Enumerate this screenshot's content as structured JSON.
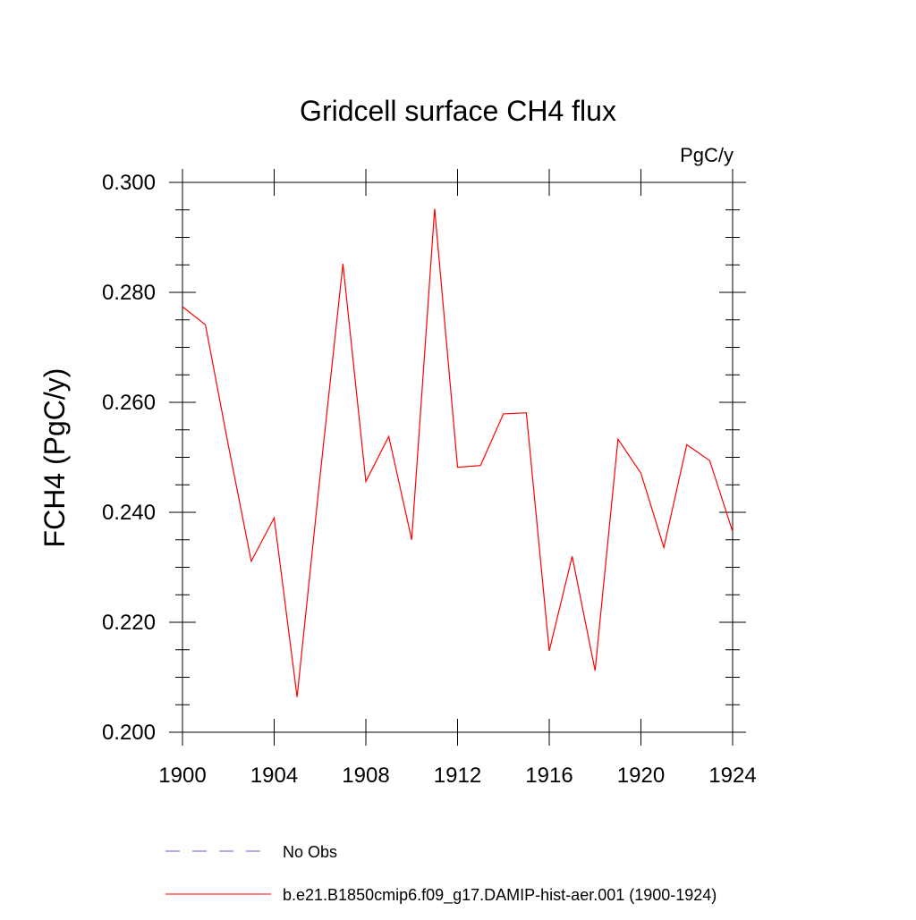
{
  "chart_data": {
    "type": "line",
    "title": "Gridcell surface CH4 flux",
    "units_label": "PgC/y",
    "ylabel": "FCH4  (PgC/y)",
    "xlabel": "",
    "xlim": [
      1900,
      1924
    ],
    "ylim": [
      0.2,
      0.3
    ],
    "x_ticks": [
      1900,
      1904,
      1908,
      1912,
      1916,
      1920,
      1924
    ],
    "x_tick_labels": [
      "1900",
      "1904",
      "1908",
      "1912",
      "1916",
      "1920",
      "1924"
    ],
    "y_ticks": [
      0.2,
      0.22,
      0.24,
      0.26,
      0.28,
      0.3
    ],
    "y_tick_labels": [
      "0.200",
      "0.220",
      "0.240",
      "0.260",
      "0.280",
      "0.300"
    ],
    "grid": false,
    "legend_position": "bottom",
    "series": [
      {
        "name": "b.e21.B1850cmip6.f09_g17.DAMIP-hist-aer.001 (1900-1924)",
        "color": "#ff0000",
        "style": "solid",
        "x": [
          1900,
          1901,
          1902,
          1903,
          1904,
          1905,
          1906,
          1907,
          1908,
          1909,
          1910,
          1911,
          1912,
          1913,
          1914,
          1915,
          1916,
          1917,
          1918,
          1919,
          1920,
          1921,
          1922,
          1923,
          1924
        ],
        "values": [
          0.2774,
          0.2741,
          0.2522,
          0.2311,
          0.239,
          0.2064,
          0.2465,
          0.2852,
          0.2456,
          0.2538,
          0.235,
          0.2952,
          0.2482,
          0.2485,
          0.2579,
          0.2581,
          0.2148,
          0.232,
          0.2112,
          0.2533,
          0.2471,
          0.2336,
          0.2523,
          0.2494,
          0.2365
        ]
      }
    ],
    "legend_entries": [
      {
        "label": "No Obs",
        "color": "#6a5acd",
        "style": "dashed"
      },
      {
        "label": "b.e21.B1850cmip6.f09_g17.DAMIP-hist-aer.001 (1900-1924)",
        "color": "#ff0000",
        "style": "solid"
      }
    ]
  }
}
